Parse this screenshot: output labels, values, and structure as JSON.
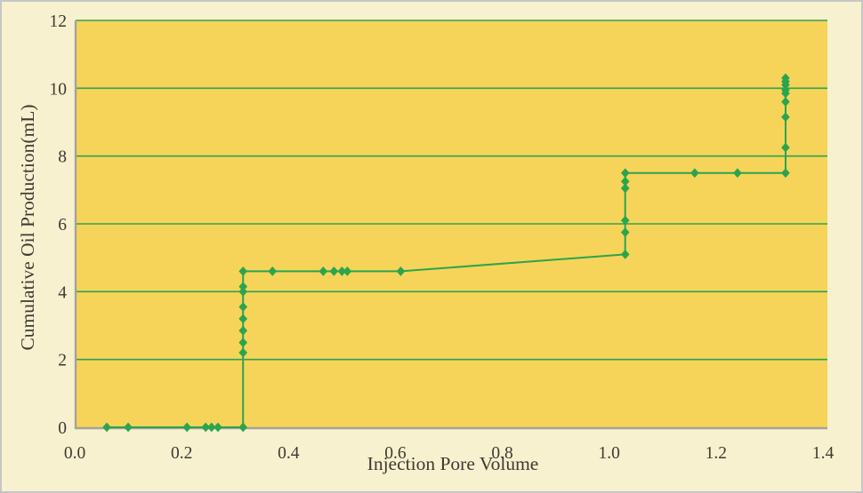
{
  "chart_data": {
    "type": "line",
    "title": "",
    "xlabel": "Injection Pore Volume",
    "ylabel": "Cumulative Oil Production(mL)",
    "xlim": [
      0.0,
      1.4
    ],
    "ylim": [
      0,
      12
    ],
    "x_ticks": [
      {
        "label": "0.0",
        "value": 0.0
      },
      {
        "label": "0.2",
        "value": 0.2
      },
      {
        "label": "0.4",
        "value": 0.4
      },
      {
        "label": "0.6",
        "value": 0.6
      },
      {
        "label": "0.8",
        "value": 0.8
      },
      {
        "label": "1.0",
        "value": 1.0
      },
      {
        "label": "1.2",
        "value": 1.2
      },
      {
        "label": "1.4",
        "value": 1.4
      }
    ],
    "y_ticks": [
      {
        "label": "0",
        "value": 0
      },
      {
        "label": "2",
        "value": 2
      },
      {
        "label": "4",
        "value": 4
      },
      {
        "label": "6",
        "value": 6
      },
      {
        "label": "8",
        "value": 8
      },
      {
        "label": "10",
        "value": 10
      },
      {
        "label": "12",
        "value": 12
      }
    ],
    "gridlines": {
      "orientation": "horizontal",
      "at_values": [
        2,
        4,
        6,
        8,
        10,
        12
      ]
    },
    "legend": "none",
    "marker": "diamond",
    "series": [
      {
        "name": "Cumulative Oil Production",
        "points": [
          [
            0.06,
            0
          ],
          [
            0.1,
            0
          ],
          [
            0.21,
            0
          ],
          [
            0.245,
            0
          ],
          [
            0.256,
            0
          ],
          [
            0.268,
            0
          ],
          [
            0.315,
            0
          ],
          [
            0.315,
            2.2
          ],
          [
            0.315,
            2.5
          ],
          [
            0.315,
            2.85
          ],
          [
            0.315,
            3.2
          ],
          [
            0.315,
            3.55
          ],
          [
            0.315,
            4.0
          ],
          [
            0.315,
            4.15
          ],
          [
            0.315,
            4.6
          ],
          [
            0.37,
            4.6
          ],
          [
            0.465,
            4.6
          ],
          [
            0.485,
            4.6
          ],
          [
            0.5,
            4.6
          ],
          [
            0.51,
            4.6
          ],
          [
            0.61,
            4.6
          ],
          [
            1.03,
            5.1
          ],
          [
            1.03,
            5.75
          ],
          [
            1.03,
            6.1
          ],
          [
            1.03,
            7.05
          ],
          [
            1.03,
            7.25
          ],
          [
            1.03,
            7.5
          ],
          [
            1.16,
            7.5
          ],
          [
            1.24,
            7.5
          ],
          [
            1.33,
            7.5
          ],
          [
            1.33,
            8.25
          ],
          [
            1.33,
            9.15
          ],
          [
            1.33,
            9.6
          ],
          [
            1.33,
            9.85
          ],
          [
            1.33,
            9.95
          ],
          [
            1.33,
            10.1
          ],
          [
            1.33,
            10.2
          ],
          [
            1.33,
            10.3
          ]
        ]
      }
    ],
    "colors": {
      "figure_background": "#F8F1CF",
      "plot_background": "#F6D45A",
      "line": "#2BA44E",
      "marker": "#2BA44E",
      "gridline": "#2BA44E",
      "axis_line": "#A6A299",
      "tick_text": "#3E3A33",
      "outer_border": "#C6C6C6"
    }
  }
}
